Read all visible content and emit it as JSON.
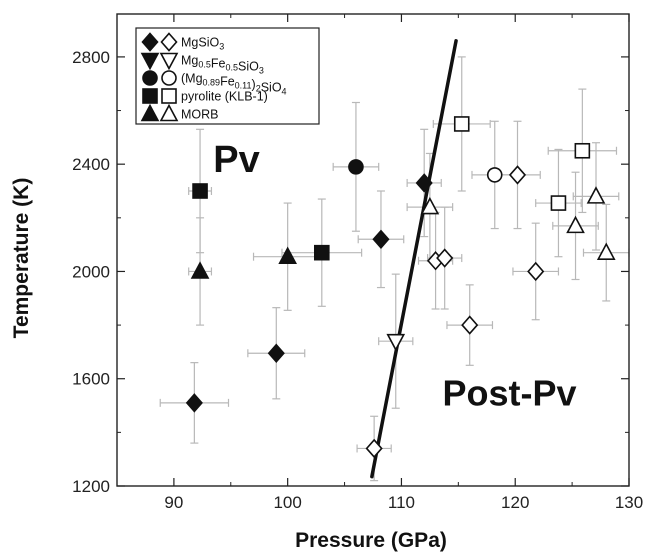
{
  "chart_data": {
    "type": "scatter",
    "xlabel": "Pressure (GPa)",
    "ylabel": "Temperature (K)",
    "xlim": [
      85,
      130
    ],
    "ylim": [
      1200,
      2960
    ],
    "xticks": [
      90,
      100,
      110,
      120,
      130
    ],
    "yticks": [
      1200,
      1600,
      2000,
      2400,
      2800
    ],
    "grid": false,
    "legend_position": "top-left",
    "legend": [
      {
        "id": "mgsio3",
        "shape": "diamond",
        "text_parts": [
          [
            "MgSiO",
            ""
          ],
          [
            "3",
            "sub"
          ]
        ]
      },
      {
        "id": "mgfesio3",
        "shape": "triangle-down",
        "text_parts": [
          [
            "Mg",
            ""
          ],
          [
            "0.5",
            "sub"
          ],
          [
            "Fe",
            ""
          ],
          [
            "0.5",
            "sub"
          ],
          [
            "SiO",
            ""
          ],
          [
            "3",
            "sub"
          ]
        ]
      },
      {
        "id": "mgfe2sio4",
        "shape": "circle",
        "text_parts": [
          [
            "(Mg",
            ""
          ],
          [
            "0.89",
            "sub"
          ],
          [
            "Fe",
            ""
          ],
          [
            "0.11",
            "sub"
          ],
          [
            ")",
            ""
          ],
          [
            "2",
            "sub"
          ],
          [
            "SiO",
            ""
          ],
          [
            "4",
            "sub"
          ]
        ]
      },
      {
        "id": "pyrolite",
        "shape": "square",
        "text_parts": [
          [
            "pyrolite (KLB-1)",
            ""
          ]
        ]
      },
      {
        "id": "morb",
        "shape": "triangle-up",
        "text_parts": [
          [
            "MORB",
            ""
          ]
        ]
      }
    ],
    "regions": [
      {
        "text": "Pv",
        "x": 95.5,
        "y": 2370,
        "size": 38
      },
      {
        "text": "Post-Pv",
        "x": 119.5,
        "y": 1500,
        "size": 36
      }
    ],
    "phase_boundary": {
      "x": [
        107.4,
        114.8
      ],
      "y": [
        1235,
        2860
      ]
    },
    "series": [
      {
        "id": "mgsio3",
        "filled": true,
        "points": [
          {
            "x": 91.8,
            "y": 1510,
            "xerr": 3,
            "yerr": 150
          },
          {
            "x": 99.0,
            "y": 1695,
            "xerr": 2.5,
            "yerr": 170
          },
          {
            "x": 108.2,
            "y": 2120,
            "xerr": 2,
            "yerr": 180
          },
          {
            "x": 112.0,
            "y": 2330,
            "xerr": 1.5,
            "yerr": 200
          }
        ]
      },
      {
        "id": "mgsio3",
        "filled": false,
        "points": [
          {
            "x": 107.6,
            "y": 1340,
            "xerr": 1.5,
            "yerr": 120
          },
          {
            "x": 113.0,
            "y": 2040,
            "xerr": 1.5,
            "yerr": 180
          },
          {
            "x": 113.8,
            "y": 2050,
            "xerr": 1.5,
            "yerr": 190
          },
          {
            "x": 116.0,
            "y": 1800,
            "xerr": 2,
            "yerr": 150
          },
          {
            "x": 120.2,
            "y": 2360,
            "xerr": 2,
            "yerr": 200
          },
          {
            "x": 121.8,
            "y": 2000,
            "xerr": 2,
            "yerr": 180
          }
        ]
      },
      {
        "id": "mgfesio3",
        "filled": true,
        "points": []
      },
      {
        "id": "mgfesio3",
        "filled": false,
        "points": [
          {
            "x": 109.5,
            "y": 1740,
            "xerr": 1.5,
            "yerr": 250
          }
        ]
      },
      {
        "id": "mgfe2sio4",
        "filled": true,
        "points": [
          {
            "x": 106.0,
            "y": 2390,
            "xerr": 2,
            "yerr": 240
          }
        ]
      },
      {
        "id": "mgfe2sio4",
        "filled": false,
        "points": [
          {
            "x": 118.2,
            "y": 2360,
            "xerr": 2,
            "yerr": 200
          }
        ]
      },
      {
        "id": "pyrolite",
        "filled": true,
        "points": [
          {
            "x": 92.3,
            "y": 2300,
            "xerr": 1,
            "yerr": 230
          },
          {
            "x": 103.0,
            "y": 2070,
            "xerr": 3.5,
            "yerr": 200
          }
        ]
      },
      {
        "id": "pyrolite",
        "filled": false,
        "points": [
          {
            "x": 115.3,
            "y": 2550,
            "xerr": 2.5,
            "yerr": 250
          },
          {
            "x": 123.8,
            "y": 2255,
            "xerr": 2,
            "yerr": 200
          },
          {
            "x": 125.9,
            "y": 2450,
            "xerr": 3,
            "yerr": 230
          }
        ]
      },
      {
        "id": "morb",
        "filled": true,
        "points": [
          {
            "x": 92.3,
            "y": 2000,
            "xerr": 1,
            "yerr": 200
          },
          {
            "x": 100.0,
            "y": 2055,
            "xerr": 3,
            "yerr": 200
          }
        ]
      },
      {
        "id": "morb",
        "filled": false,
        "points": [
          {
            "x": 112.5,
            "y": 2240,
            "xerr": 2,
            "yerr": 200
          },
          {
            "x": 125.3,
            "y": 2170,
            "xerr": 2,
            "yerr": 200
          },
          {
            "x": 127.1,
            "y": 2280,
            "xerr": 2,
            "yerr": 200
          },
          {
            "x": 128.0,
            "y": 2070,
            "xerr": 2,
            "yerr": 180
          }
        ]
      }
    ],
    "colors": {
      "marker": "#111111",
      "errorbar": "#b8b8b8",
      "axis": "#222222"
    }
  }
}
